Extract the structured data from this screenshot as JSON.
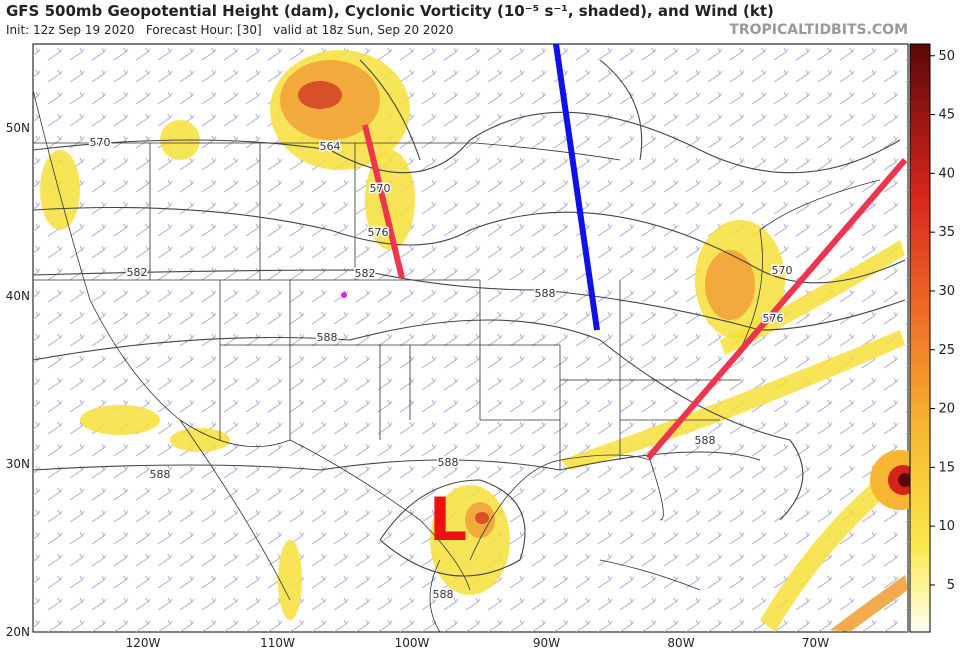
{
  "header": {
    "title": "GFS 500mb Geopotential Height (dam), Cyclonic Vorticity (10⁻⁵ s⁻¹, shaded), and Wind (kt)",
    "subtitle": "Init: 12z Sep 19 2020   Forecast Hour: [30]   valid at 18z Sun, Sep 20 2020",
    "source": "TROPICALTIDBITS.COM"
  },
  "map": {
    "lat_labels": [
      "50N",
      "40N",
      "30N",
      "20N"
    ],
    "lon_labels": [
      "120W",
      "110W",
      "100W",
      "90W",
      "80W",
      "70W"
    ],
    "contour_labels": [
      "570",
      "564",
      "570",
      "576",
      "582",
      "582",
      "588",
      "588",
      "588",
      "588",
      "588",
      "588",
      "570",
      "576"
    ],
    "annotation": "L"
  },
  "colorbar": {
    "range": [
      1,
      51
    ],
    "ticks": [
      5,
      10,
      15,
      20,
      25,
      30,
      35,
      40,
      45,
      50
    ]
  }
}
